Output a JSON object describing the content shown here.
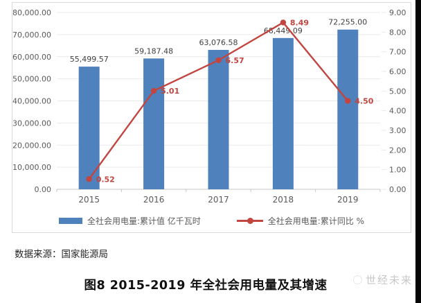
{
  "chart_data": {
    "type": "bar+line",
    "categories": [
      "2015",
      "2016",
      "2017",
      "2018",
      "2019"
    ],
    "series": [
      {
        "name": "全社会用电量:累计值 亿千瓦时",
        "type": "bar",
        "axis": "left",
        "values": [
          55499.57,
          59187.48,
          63076.58,
          68449.09,
          72255.0
        ],
        "labels": [
          "55,499.57",
          "59,187.48",
          "63,076.58",
          "68,449.09",
          "72,255.00"
        ]
      },
      {
        "name": "全社会用电量:累计同比 %",
        "type": "line",
        "axis": "right",
        "values": [
          0.52,
          5.01,
          6.57,
          8.49,
          4.5
        ],
        "labels": [
          "0.52",
          "5.01",
          "6.57",
          "8.49",
          "4.50"
        ]
      }
    ],
    "left_axis": {
      "min": 0,
      "max": 80000,
      "tick_labels": [
        "0.00",
        "10,000.00",
        "20,000.00",
        "30,000.00",
        "40,000.00",
        "50,000.00",
        "60,000.00",
        "70,000.00",
        "80,000.00"
      ]
    },
    "right_axis": {
      "min": 0,
      "max": 9,
      "tick_labels": [
        "0.00",
        "1.00",
        "2.00",
        "3.00",
        "4.00",
        "5.00",
        "6.00",
        "7.00",
        "8.00",
        "9.00"
      ]
    },
    "grid": true,
    "legend_position": "bottom"
  },
  "colors": {
    "bar": "#4f81bd",
    "line": "#c2453f",
    "grid": "#e9e9e9",
    "axis_line": "#c6c6c6",
    "tick_text": "#595959",
    "bar_label_text": "#3f3f3f"
  },
  "caption": {
    "source": "数据来源：国家能源局",
    "title": "图8 2015-2019 年全社会用电量及其增速"
  },
  "watermark": {
    "text": "世经未来"
  }
}
